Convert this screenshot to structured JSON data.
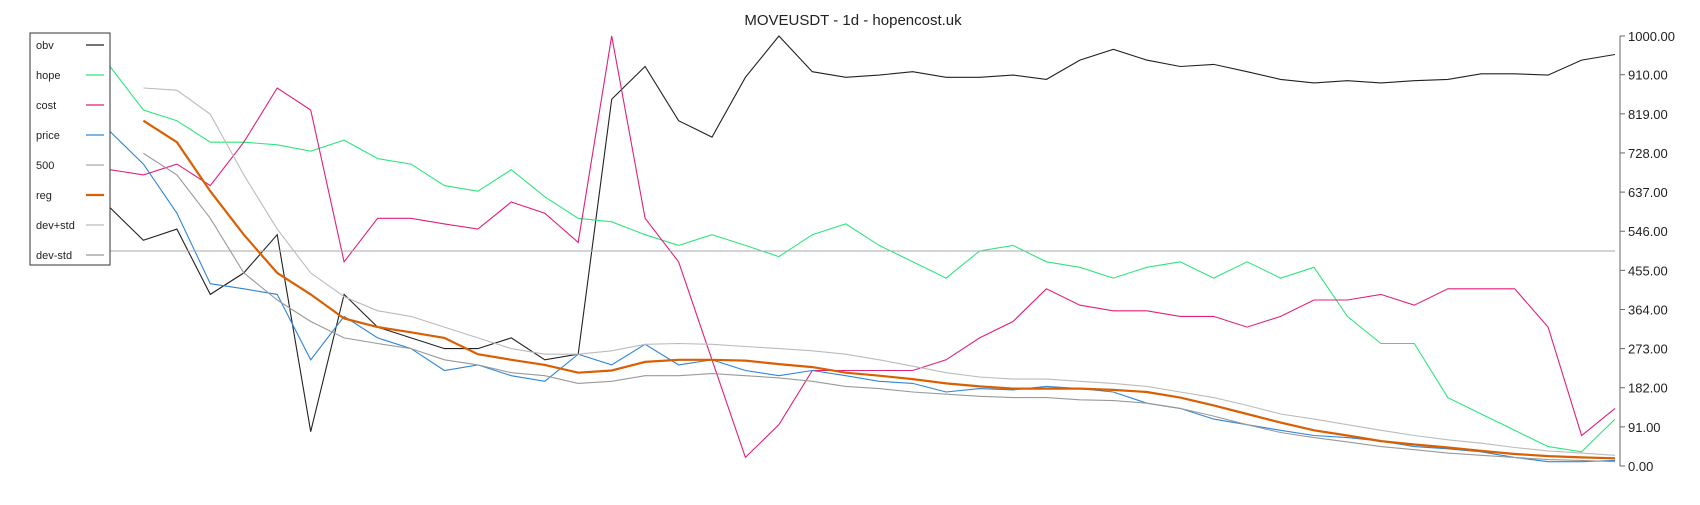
{
  "chart_data": {
    "type": "line",
    "title": "MOVEUSDT - 1d - hopencost.uk",
    "categories": [
      null,
      null,
      null,
      null,
      null,
      null,
      null,
      null,
      null,
      null,
      null,
      null,
      null,
      null,
      null,
      null,
      null,
      null,
      null,
      null,
      null,
      null,
      null,
      null,
      null,
      null,
      null,
      null,
      null,
      null,
      null,
      null,
      null,
      null,
      null,
      null,
      null,
      null,
      null,
      null,
      null,
      null,
      null,
      null,
      null,
      null
    ],
    "ylim": [
      0,
      1000
    ],
    "yticks": [
      {
        "value": 0,
        "label": "0.00"
      },
      {
        "value": 91,
        "label": "91.00"
      },
      {
        "value": 182,
        "label": "182.00"
      },
      {
        "value": 273,
        "label": "273.00"
      },
      {
        "value": 364,
        "label": "364.00"
      },
      {
        "value": 455,
        "label": "455.00"
      },
      {
        "value": 546,
        "label": "546.00"
      },
      {
        "value": 637,
        "label": "637.00"
      },
      {
        "value": 728,
        "label": "728.00"
      },
      {
        "value": 819,
        "label": "819.00"
      },
      {
        "value": 910,
        "label": "910.00"
      },
      {
        "value": 1000,
        "label": "1000.00"
      }
    ],
    "legend": "upper-left",
    "series": [
      {
        "name": "obv",
        "color": "#222222",
        "values": [
          601,
          525,
          551,
          399,
          449,
          538,
          80,
          399,
          323,
          298,
          273,
          273,
          298,
          247,
          260,
          853,
          929,
          803,
          765,
          904,
          1000,
          917,
          904,
          909,
          917,
          904,
          904,
          909,
          899,
          944,
          969,
          944,
          929,
          934,
          917,
          899,
          891,
          896,
          891,
          896,
          899,
          912,
          912,
          909,
          944,
          957
        ]
      },
      {
        "name": "hope",
        "color": "#2ee57c",
        "values": [
          929,
          828,
          803,
          753,
          753,
          747,
          732,
          758,
          715,
          702,
          652,
          639,
          689,
          626,
          576,
          568,
          538,
          513,
          538,
          513,
          487,
          538,
          563,
          513,
          475,
          437,
          500,
          513,
          475,
          462,
          437,
          462,
          475,
          437,
          475,
          437,
          462,
          348,
          285,
          285,
          159,
          121,
          83,
          45,
          33,
          109
        ]
      },
      {
        "name": "cost",
        "color": "#e0207a",
        "values": [
          689,
          677,
          702,
          652,
          753,
          879,
          828,
          475,
          576,
          576,
          563,
          551,
          614,
          588,
          520,
          1000,
          576,
          475,
          247,
          20,
          96,
          222,
          222,
          222,
          222,
          247,
          298,
          336,
          412,
          374,
          361,
          361,
          348,
          348,
          323,
          348,
          386,
          386,
          399,
          374,
          412,
          412,
          412,
          323,
          71,
          134
        ]
      },
      {
        "name": "price",
        "color": "#2f86d6",
        "values": [
          778,
          702,
          588,
          424,
          412,
          399,
          247,
          348,
          298,
          273,
          222,
          235,
          210,
          197,
          260,
          235,
          283,
          235,
          247,
          222,
          210,
          222,
          210,
          197,
          192,
          172,
          180,
          177,
          185,
          180,
          172,
          146,
          134,
          109,
          96,
          83,
          71,
          66,
          58,
          45,
          40,
          33,
          20,
          10,
          10,
          13
        ]
      },
      {
        "name": "500",
        "color": "#aaaaaa",
        "values": [
          500,
          500,
          500,
          500,
          500,
          500,
          500,
          500,
          500,
          500,
          500,
          500,
          500,
          500,
          500,
          500,
          500,
          500,
          500,
          500,
          500,
          500,
          500,
          500,
          500,
          500,
          500,
          500,
          500,
          500,
          500,
          500,
          500,
          500,
          500,
          500,
          500,
          500,
          500,
          500,
          500,
          500,
          500,
          500,
          500,
          500
        ]
      },
      {
        "name": "reg",
        "color": "#d95f02",
        "values": [
          null,
          803,
          753,
          639,
          538,
          449,
          399,
          343,
          323,
          311,
          298,
          260,
          247,
          235,
          217,
          222,
          242,
          247,
          247,
          245,
          237,
          230,
          217,
          210,
          202,
          192,
          185,
          180,
          180,
          180,
          177,
          172,
          159,
          141,
          121,
          101,
          83,
          71,
          58,
          50,
          43,
          35,
          28,
          23,
          20,
          18
        ]
      },
      {
        "name": "dev+std",
        "color": "#bbbbbb",
        "values": [
          null,
          879,
          874,
          818,
          677,
          551,
          449,
          394,
          361,
          348,
          323,
          298,
          273,
          260,
          260,
          268,
          283,
          285,
          283,
          278,
          273,
          268,
          260,
          247,
          232,
          217,
          207,
          202,
          202,
          197,
          192,
          185,
          172,
          159,
          141,
          121,
          109,
          96,
          83,
          71,
          61,
          53,
          43,
          35,
          30,
          25
        ]
      },
      {
        "name": "dev-std",
        "color": "#999999",
        "values": [
          null,
          727,
          677,
          576,
          449,
          386,
          336,
          298,
          285,
          273,
          247,
          235,
          217,
          210,
          192,
          197,
          210,
          210,
          215,
          210,
          205,
          197,
          185,
          180,
          172,
          167,
          162,
          159,
          159,
          154,
          152,
          146,
          134,
          116,
          96,
          78,
          66,
          56,
          45,
          38,
          30,
          25,
          20,
          15,
          13,
          10
        ]
      }
    ]
  }
}
